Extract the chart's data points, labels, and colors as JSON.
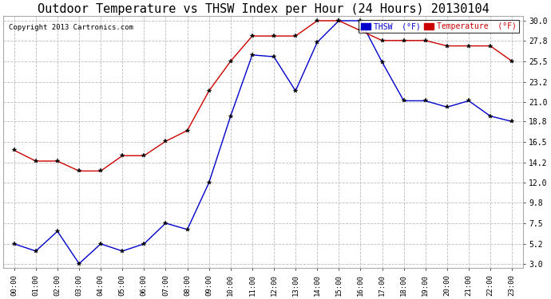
{
  "title": "Outdoor Temperature vs THSW Index per Hour (24 Hours) 20130104",
  "copyright": "Copyright 2013 Cartronics.com",
  "hours": [
    "00:00",
    "01:00",
    "02:00",
    "03:00",
    "04:00",
    "05:00",
    "06:00",
    "07:00",
    "08:00",
    "09:00",
    "10:00",
    "11:00",
    "12:00",
    "13:00",
    "14:00",
    "15:00",
    "16:00",
    "17:00",
    "18:00",
    "19:00",
    "20:00",
    "21:00",
    "22:00",
    "23:00"
  ],
  "thsw": [
    5.2,
    4.4,
    6.6,
    3.0,
    5.2,
    4.4,
    5.2,
    7.5,
    6.8,
    12.0,
    19.4,
    26.2,
    26.0,
    22.2,
    27.6,
    30.0,
    30.0,
    25.4,
    21.1,
    21.1,
    20.4,
    21.1,
    19.4,
    18.8
  ],
  "temperature": [
    15.6,
    14.4,
    14.4,
    13.3,
    13.3,
    15.0,
    15.0,
    16.6,
    17.8,
    22.2,
    25.5,
    28.3,
    28.3,
    28.3,
    30.0,
    30.0,
    28.9,
    27.8,
    27.8,
    27.8,
    27.2,
    27.2,
    27.2,
    25.5
  ],
  "thsw_color": "#0000cc",
  "temp_color": "#cc0000",
  "bg_color": "#ffffff",
  "grid_color": "#bbbbbb",
  "yticks": [
    3.0,
    5.2,
    7.5,
    9.8,
    12.0,
    14.2,
    16.5,
    18.8,
    21.0,
    23.2,
    25.5,
    27.8,
    30.0
  ],
  "ymin": 2.5,
  "ymax": 30.5,
  "title_fontsize": 11,
  "copyright_fontsize": 6.5,
  "legend_thsw_label": "THSW  (°F)",
  "legend_temp_label": "Temperature  (°F)"
}
